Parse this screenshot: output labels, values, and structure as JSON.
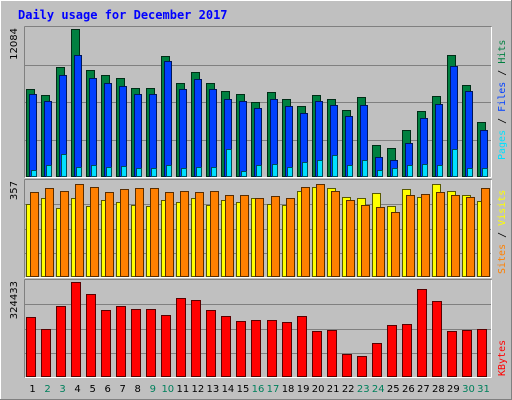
{
  "chart_data": {
    "type": "bar",
    "title": "Daily usage for December 2017",
    "colors": {
      "background": "#c0c0c0",
      "title": "#0000ff",
      "hits": "#008040",
      "files": "#0040ff",
      "pages": "#00e0ff",
      "visits": "#ffff00",
      "sites": "#ff8000",
      "kbytes": "#ff0000",
      "weekday_label": "#000000",
      "weekend_label": "#00805c"
    },
    "categories": [
      "1",
      "2",
      "3",
      "4",
      "5",
      "6",
      "7",
      "8",
      "9",
      "10",
      "11",
      "12",
      "13",
      "14",
      "15",
      "16",
      "17",
      "18",
      "19",
      "20",
      "21",
      "22",
      "23",
      "24",
      "25",
      "26",
      "27",
      "28",
      "29",
      "30",
      "31"
    ],
    "weekend_days": [
      2,
      3,
      9,
      10,
      16,
      17,
      23,
      24,
      30,
      31
    ],
    "panels": [
      {
        "name": "hits-files-pages",
        "max_label": "12084",
        "ymax": 12084,
        "legend": [
          {
            "text": "Pages",
            "color_key": "pages"
          },
          {
            "text": " / ",
            "color_key": "weekday_label"
          },
          {
            "text": "Files",
            "color_key": "files"
          },
          {
            "text": " / ",
            "color_key": "weekday_label"
          },
          {
            "text": "Hits",
            "color_key": "hits"
          }
        ],
        "series": [
          {
            "key": "hits",
            "values": [
              7200,
              6700,
              9000,
              12084,
              8700,
              8300,
              8100,
              7300,
              7300,
              9900,
              7700,
              8600,
              7700,
              7000,
              6800,
              6100,
              6900,
              6400,
              5800,
              6700,
              6400,
              5500,
              6500,
              2600,
              2400,
              3800,
              5400,
              6600,
              10000,
              7500,
              4500
            ]
          },
          {
            "key": "files",
            "values": [
              6800,
              6200,
              8300,
              10000,
              8100,
              7700,
              7400,
              6800,
              6800,
              9500,
              7200,
              8000,
              7200,
              6400,
              6200,
              5600,
              6400,
              5800,
              5200,
              6200,
              5900,
              5000,
              5900,
              1600,
              1400,
              2800,
              4800,
              6000,
              9100,
              7000,
              3800
            ]
          },
          {
            "key": "pages",
            "values": [
              600,
              1000,
              1900,
              800,
              1000,
              800,
              900,
              700,
              700,
              1000,
              700,
              800,
              800,
              2300,
              500,
              1000,
              1100,
              800,
              1200,
              1400,
              1800,
              1000,
              1400,
              600,
              700,
              1000,
              1100,
              1000,
              2300,
              700,
              700
            ]
          }
        ]
      },
      {
        "name": "sites-visits",
        "max_label": "357",
        "ymax": 357,
        "legend": [
          {
            "text": "Sites",
            "color_key": "sites"
          },
          {
            "text": " / ",
            "color_key": "weekday_label"
          },
          {
            "text": "Visits",
            "color_key": "visits"
          }
        ],
        "series": [
          {
            "key": "visits",
            "values": [
              275,
              298,
              258,
              295,
              268,
              290,
              280,
              272,
              265,
              290,
              282,
              298,
              272,
              288,
              280,
              295,
              275,
              270,
              325,
              340,
              335,
              300,
              295,
              315,
              265,
              330,
              300,
              350,
              325,
              310,
              285
            ]
          },
          {
            "key": "sites",
            "values": [
              320,
              335,
              325,
              348,
              337,
              318,
              330,
              335,
              333,
              320,
              322,
              320,
              325,
              308,
              308,
              295,
              305,
              295,
              340,
              350,
              322,
              290,
              270,
              262,
              245,
              310,
              312,
              320,
              310,
              300,
              335
            ]
          }
        ]
      },
      {
        "name": "kbytes",
        "max_label": "324433",
        "ymax": 324433,
        "legend": [
          {
            "text": "KBytes",
            "color_key": "kbytes"
          }
        ],
        "series": [
          {
            "key": "kbytes",
            "values": [
              205000,
              165000,
              243000,
              324433,
              285000,
              228000,
              243000,
              232000,
              232000,
              213000,
              271000,
              262000,
              228000,
              210000,
              190000,
              195000,
              195000,
              187000,
              208000,
              158000,
              160000,
              80000,
              72000,
              115000,
              178000,
              182000,
              300000,
              258000,
              158000,
              162000,
              165000
            ]
          }
        ]
      }
    ]
  }
}
